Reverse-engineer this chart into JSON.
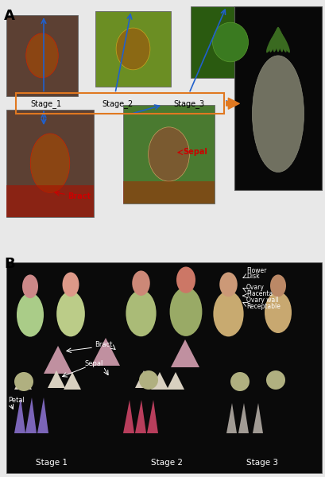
{
  "panel_a_label": "A",
  "panel_b_label": "B",
  "stage_labels": [
    "Stage_1",
    "Stage_2",
    "Stage_3"
  ],
  "bract_label": "Bract",
  "sepal_label_a": "Sepal",
  "flower_disk_label": "Flower\nDisk",
  "ovary_placenta_label": "Ovary\nPlacenta",
  "ovary_wall_label": "Ovary wall",
  "receptable_label": "Receptable",
  "bract_label_b": "Bract",
  "sepal_label_b": "Sepal",
  "petal_label": "Petal",
  "stage1_label": "Stage 1",
  "stage2_label": "Stage 2",
  "stage3_label": "Stage 3",
  "arrow_color_blue": "#2060CC",
  "arrow_color_orange": "#E07820",
  "label_color_red": "#CC0000",
  "label_color_white": "#ffffff",
  "label_color_black": "#000000",
  "fig_width": 4.1,
  "fig_height": 6.0,
  "dpi": 100
}
